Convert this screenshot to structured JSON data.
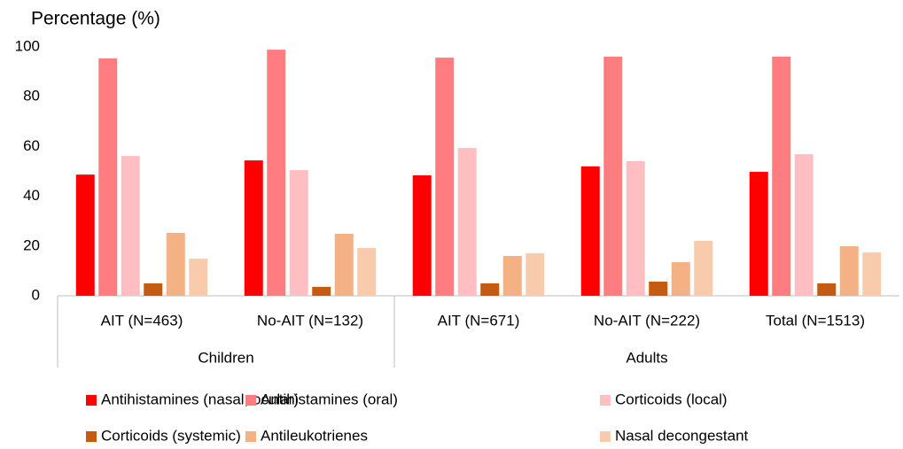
{
  "chart_data": {
    "type": "bar",
    "y_axis_label": "Percentage (%)",
    "categories": [
      "AIT (N=463)",
      "No-AIT (N=132)",
      "AIT (N=671)",
      "No-AIT (N=222)",
      "Total (N=1513)"
    ],
    "groups": [
      {
        "label": "Children",
        "count": 2
      },
      {
        "label": "Adults",
        "count": 3
      }
    ],
    "series": [
      {
        "name": "Antihistamines (nasal, ocular)",
        "color": "#ff0000",
        "values": [
          48.7,
          54.4,
          48.4,
          52.0,
          49.8
        ]
      },
      {
        "name": "Antihistamines (oral)",
        "color": "#ff7c80",
        "values": [
          95.4,
          98.9,
          95.7,
          96.1,
          96.1
        ]
      },
      {
        "name": "Corticoids (local)",
        "color": "#ffbfc2",
        "values": [
          56.2,
          50.5,
          59.4,
          54.1,
          56.9
        ]
      },
      {
        "name": "Corticoids (systemic)",
        "color": "#c55a11",
        "values": [
          5.0,
          3.6,
          5.0,
          5.7,
          5.0
        ]
      },
      {
        "name": "Antileukotrienes",
        "color": "#f4b183",
        "values": [
          25.3,
          24.9,
          16.0,
          13.5,
          19.9
        ]
      },
      {
        "name": "Nasal decongestant",
        "color": "#f8cbad",
        "values": [
          14.9,
          19.2,
          17.1,
          22.1,
          17.4
        ]
      }
    ],
    "ylim": [
      0,
      100
    ],
    "yticks": [
      0,
      20,
      40,
      60,
      80,
      100
    ],
    "grid": false
  }
}
